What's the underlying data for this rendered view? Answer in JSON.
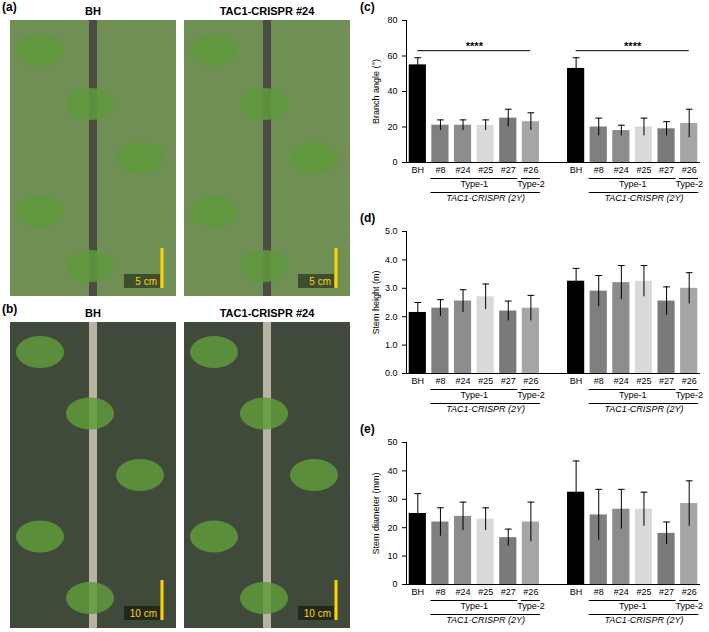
{
  "photos": [
    {
      "panel": "(a)",
      "images": [
        {
          "label": "BH",
          "scale_bar": "5 cm"
        },
        {
          "label": "TAC1-CRISPR #24",
          "scale_bar": "5 cm"
        }
      ]
    },
    {
      "panel": "(b)",
      "images": [
        {
          "label": "BH",
          "scale_bar": "10 cm"
        },
        {
          "label": "TAC1-CRISPR #24",
          "scale_bar": "10 cm"
        }
      ]
    }
  ],
  "chart_data": [
    {
      "panel": "(c)",
      "type": "bar",
      "y_label": "Branch angle (°)",
      "categories": [
        "BH",
        "#8",
        "#24",
        "#25",
        "#27",
        "#26",
        "BH",
        "#8",
        "#24",
        "#25",
        "#27",
        "#26"
      ],
      "values": [
        55,
        21,
        21,
        21,
        25,
        23,
        53,
        20,
        18,
        20,
        19,
        22
      ],
      "errors": [
        4,
        3,
        3,
        3,
        5,
        5,
        6,
        5,
        3,
        5,
        4,
        8
      ],
      "colors": [
        "#000000",
        "#7f7f7f",
        "#8c8c8c",
        "#d9d9d9",
        "#7a7a7a",
        "#a6a6a6",
        "#000000",
        "#7f7f7f",
        "#8c8c8c",
        "#d9d9d9",
        "#7a7a7a",
        "#a6a6a6"
      ],
      "ylim": [
        0,
        80
      ],
      "yticks": [
        0,
        20,
        40,
        60,
        80
      ],
      "x_subgroups": [
        {
          "label": "Type-1",
          "span": [
            1,
            4
          ]
        },
        {
          "label": "Type-2",
          "span": [
            5,
            5
          ]
        },
        {
          "label": "Type-1",
          "span": [
            7,
            10
          ]
        },
        {
          "label": "Type-2",
          "span": [
            11,
            11
          ]
        }
      ],
      "x_groups": [
        {
          "label": "TAC1-CRISPR (2Y)",
          "span": [
            1,
            5
          ]
        },
        {
          "label": "TAC1-CRISPR (2Y)",
          "span": [
            7,
            11
          ]
        }
      ],
      "annotations": [
        {
          "text": "****",
          "span": [
            0,
            5
          ],
          "y": 63
        },
        {
          "text": "****",
          "span": [
            6,
            11
          ],
          "y": 63
        }
      ]
    },
    {
      "panel": "(d)",
      "type": "bar",
      "y_label": "Stem height (m)",
      "categories": [
        "BH",
        "#8",
        "#24",
        "#25",
        "#27",
        "#26",
        "BH",
        "#8",
        "#24",
        "#25",
        "#27",
        "#26"
      ],
      "values": [
        2.15,
        2.3,
        2.55,
        2.7,
        2.2,
        2.3,
        3.25,
        2.9,
        3.2,
        3.25,
        2.55,
        3.0
      ],
      "errors": [
        0.35,
        0.3,
        0.4,
        0.45,
        0.35,
        0.45,
        0.45,
        0.55,
        0.6,
        0.55,
        0.5,
        0.55
      ],
      "colors": [
        "#000000",
        "#7f7f7f",
        "#8c8c8c",
        "#d9d9d9",
        "#7a7a7a",
        "#a6a6a6",
        "#000000",
        "#7f7f7f",
        "#8c8c8c",
        "#d9d9d9",
        "#7a7a7a",
        "#a6a6a6"
      ],
      "ylim": [
        0,
        5
      ],
      "yticks": [
        0,
        1,
        2,
        3,
        4,
        5
      ],
      "x_subgroups": [
        {
          "label": "Type-1",
          "span": [
            1,
            4
          ]
        },
        {
          "label": "Type-2",
          "span": [
            5,
            5
          ]
        },
        {
          "label": "Type-1",
          "span": [
            7,
            10
          ]
        },
        {
          "label": "Type-2",
          "span": [
            11,
            11
          ]
        }
      ],
      "x_groups": [
        {
          "label": "TAC1-CRISPR (2Y)",
          "span": [
            1,
            5
          ]
        },
        {
          "label": "TAC1-CRISPR (2Y)",
          "span": [
            7,
            11
          ]
        }
      ]
    },
    {
      "panel": "(e)",
      "type": "bar",
      "y_label": "Stem diameter (mm)",
      "categories": [
        "BH",
        "#8",
        "#24",
        "#25",
        "#27",
        "#26",
        "BH",
        "#8",
        "#24",
        "#25",
        "#27",
        "#26"
      ],
      "values": [
        25,
        22,
        24,
        23,
        16.5,
        22,
        32.5,
        24.5,
        26.5,
        26.5,
        18,
        28.5
      ],
      "errors": [
        7,
        5,
        5,
        4,
        3,
        7,
        11,
        9,
        7,
        6,
        4,
        8
      ],
      "colors": [
        "#000000",
        "#7f7f7f",
        "#8c8c8c",
        "#d9d9d9",
        "#7a7a7a",
        "#a6a6a6",
        "#000000",
        "#7f7f7f",
        "#8c8c8c",
        "#d9d9d9",
        "#7a7a7a",
        "#a6a6a6"
      ],
      "ylim": [
        0,
        50
      ],
      "yticks": [
        0,
        10,
        20,
        30,
        40,
        50
      ],
      "x_subgroups": [
        {
          "label": "Type-1",
          "span": [
            1,
            4
          ]
        },
        {
          "label": "Type-2",
          "span": [
            5,
            5
          ]
        },
        {
          "label": "Type-1",
          "span": [
            7,
            10
          ]
        },
        {
          "label": "Type-2",
          "span": [
            11,
            11
          ]
        }
      ],
      "x_groups": [
        {
          "label": "TAC1-CRISPR (2Y)",
          "span": [
            1,
            5
          ]
        },
        {
          "label": "TAC1-CRISPR (2Y)",
          "span": [
            7,
            11
          ]
        }
      ]
    }
  ]
}
